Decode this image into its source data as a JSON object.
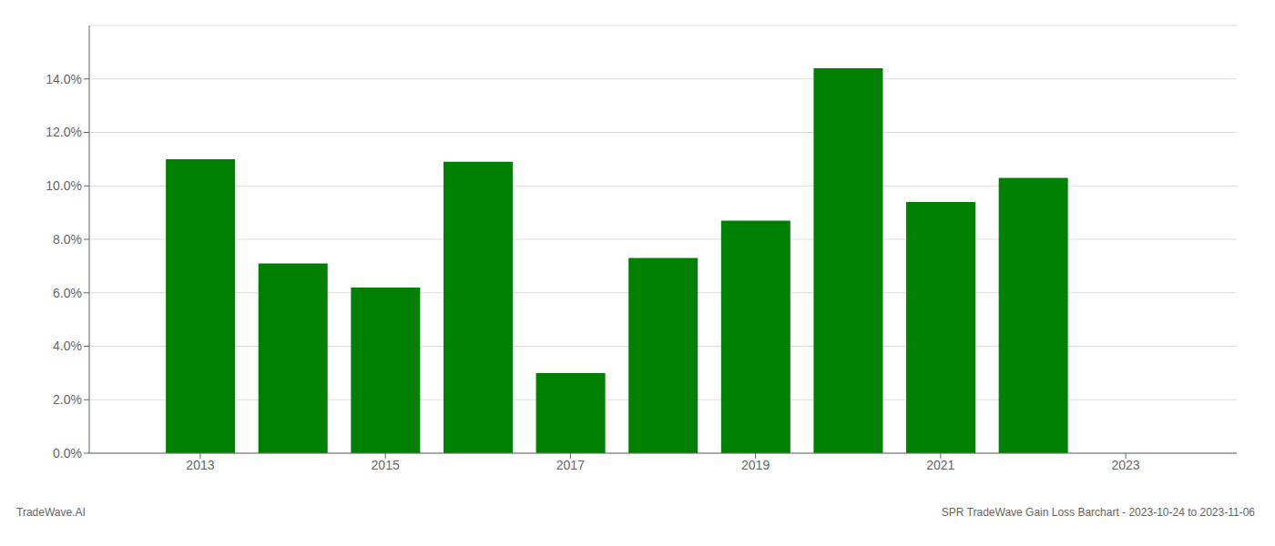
{
  "chart_data": {
    "type": "bar",
    "title": "SPR TradeWave Gain Loss Barchart - 2023-10-24 to 2023-11-06",
    "annotations": [
      "TradeWave.AI"
    ],
    "x": [
      2013,
      2014,
      2015,
      2016,
      2017,
      2018,
      2019,
      2020,
      2021,
      2022
    ],
    "values": [
      0.11,
      0.071,
      0.062,
      0.109,
      0.03,
      0.073,
      0.087,
      0.144,
      0.094,
      0.103
    ],
    "color": "#008000",
    "xlim": [
      2011.8,
      2024.2
    ],
    "xticks": [
      2013,
      2015,
      2017,
      2019,
      2021,
      2023
    ],
    "ylim": [
      0,
      0.16
    ],
    "yticks": [
      {
        "value": 0.0,
        "label": "0.0%"
      },
      {
        "value": 0.02,
        "label": "2.0%"
      },
      {
        "value": 0.04,
        "label": "4.0%"
      },
      {
        "value": 0.06,
        "label": "6.0%"
      },
      {
        "value": 0.08,
        "label": "8.0%"
      },
      {
        "value": 0.1,
        "label": "10.0%"
      },
      {
        "value": 0.12,
        "label": "12.0%"
      },
      {
        "value": 0.14,
        "label": "14.0%"
      }
    ],
    "grid": true
  }
}
